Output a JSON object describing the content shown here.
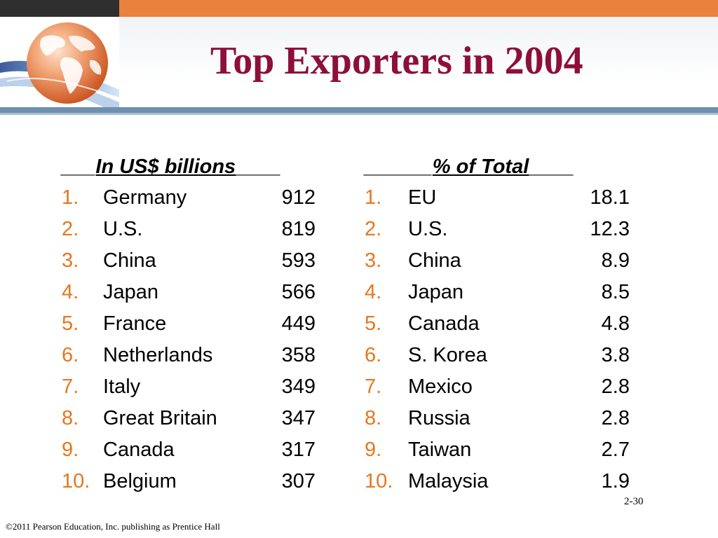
{
  "slide": {
    "title": "Top Exporters in 2004",
    "page_number": "2-30",
    "footer": "©2011 Pearson Education, Inc. publishing as Prentice Hall"
  },
  "colors": {
    "accent_orange": "#e8823c",
    "title_color": "#8e0f3a",
    "list_number_color": "#e8761e",
    "header_bar": "#6f8fae"
  },
  "left_table": {
    "header_pre": "___",
    "header_label": "In US$ billions",
    "header_post": "____",
    "rows": [
      {
        "rank": "1.",
        "name": "Germany",
        "value": "912"
      },
      {
        "rank": "2.",
        "name": "U.S.",
        "value": "819"
      },
      {
        "rank": "3.",
        "name": "China",
        "value": "593"
      },
      {
        "rank": "4.",
        "name": "Japan",
        "value": "566"
      },
      {
        "rank": "5.",
        "name": "France",
        "value": "449"
      },
      {
        "rank": "6.",
        "name": "Netherlands",
        "value": "358"
      },
      {
        "rank": "7.",
        "name": "Italy",
        "value": "349"
      },
      {
        "rank": "8.",
        "name": "Great Britain",
        "value": "347"
      },
      {
        "rank": "9.",
        "name": "Canada",
        "value": "317"
      },
      {
        "rank": "10.",
        "name": "Belgium",
        "value": "307"
      }
    ]
  },
  "right_table": {
    "header_pre": "______",
    "header_label": "% of Total",
    "header_post": "____",
    "rows": [
      {
        "rank": "1.",
        "name": "EU",
        "value": "18.1"
      },
      {
        "rank": "2.",
        "name": "U.S.",
        "value": "12.3"
      },
      {
        "rank": "3.",
        "name": "China",
        "value": "8.9"
      },
      {
        "rank": "4.",
        "name": "Japan",
        "value": "8.5"
      },
      {
        "rank": "5.",
        "name": "Canada",
        "value": "4.8"
      },
      {
        "rank": "6.",
        "name": "S. Korea",
        "value": "3.8"
      },
      {
        "rank": "7.",
        "name": "Mexico",
        "value": "2.8"
      },
      {
        "rank": "8.",
        "name": "Russia",
        "value": "2.8"
      },
      {
        "rank": "9.",
        "name": "Taiwan",
        "value": "2.7"
      },
      {
        "rank": "10.",
        "name": "Malaysia",
        "value": "1.9"
      }
    ]
  },
  "decor": {
    "logo_icon": "globe-icon"
  }
}
